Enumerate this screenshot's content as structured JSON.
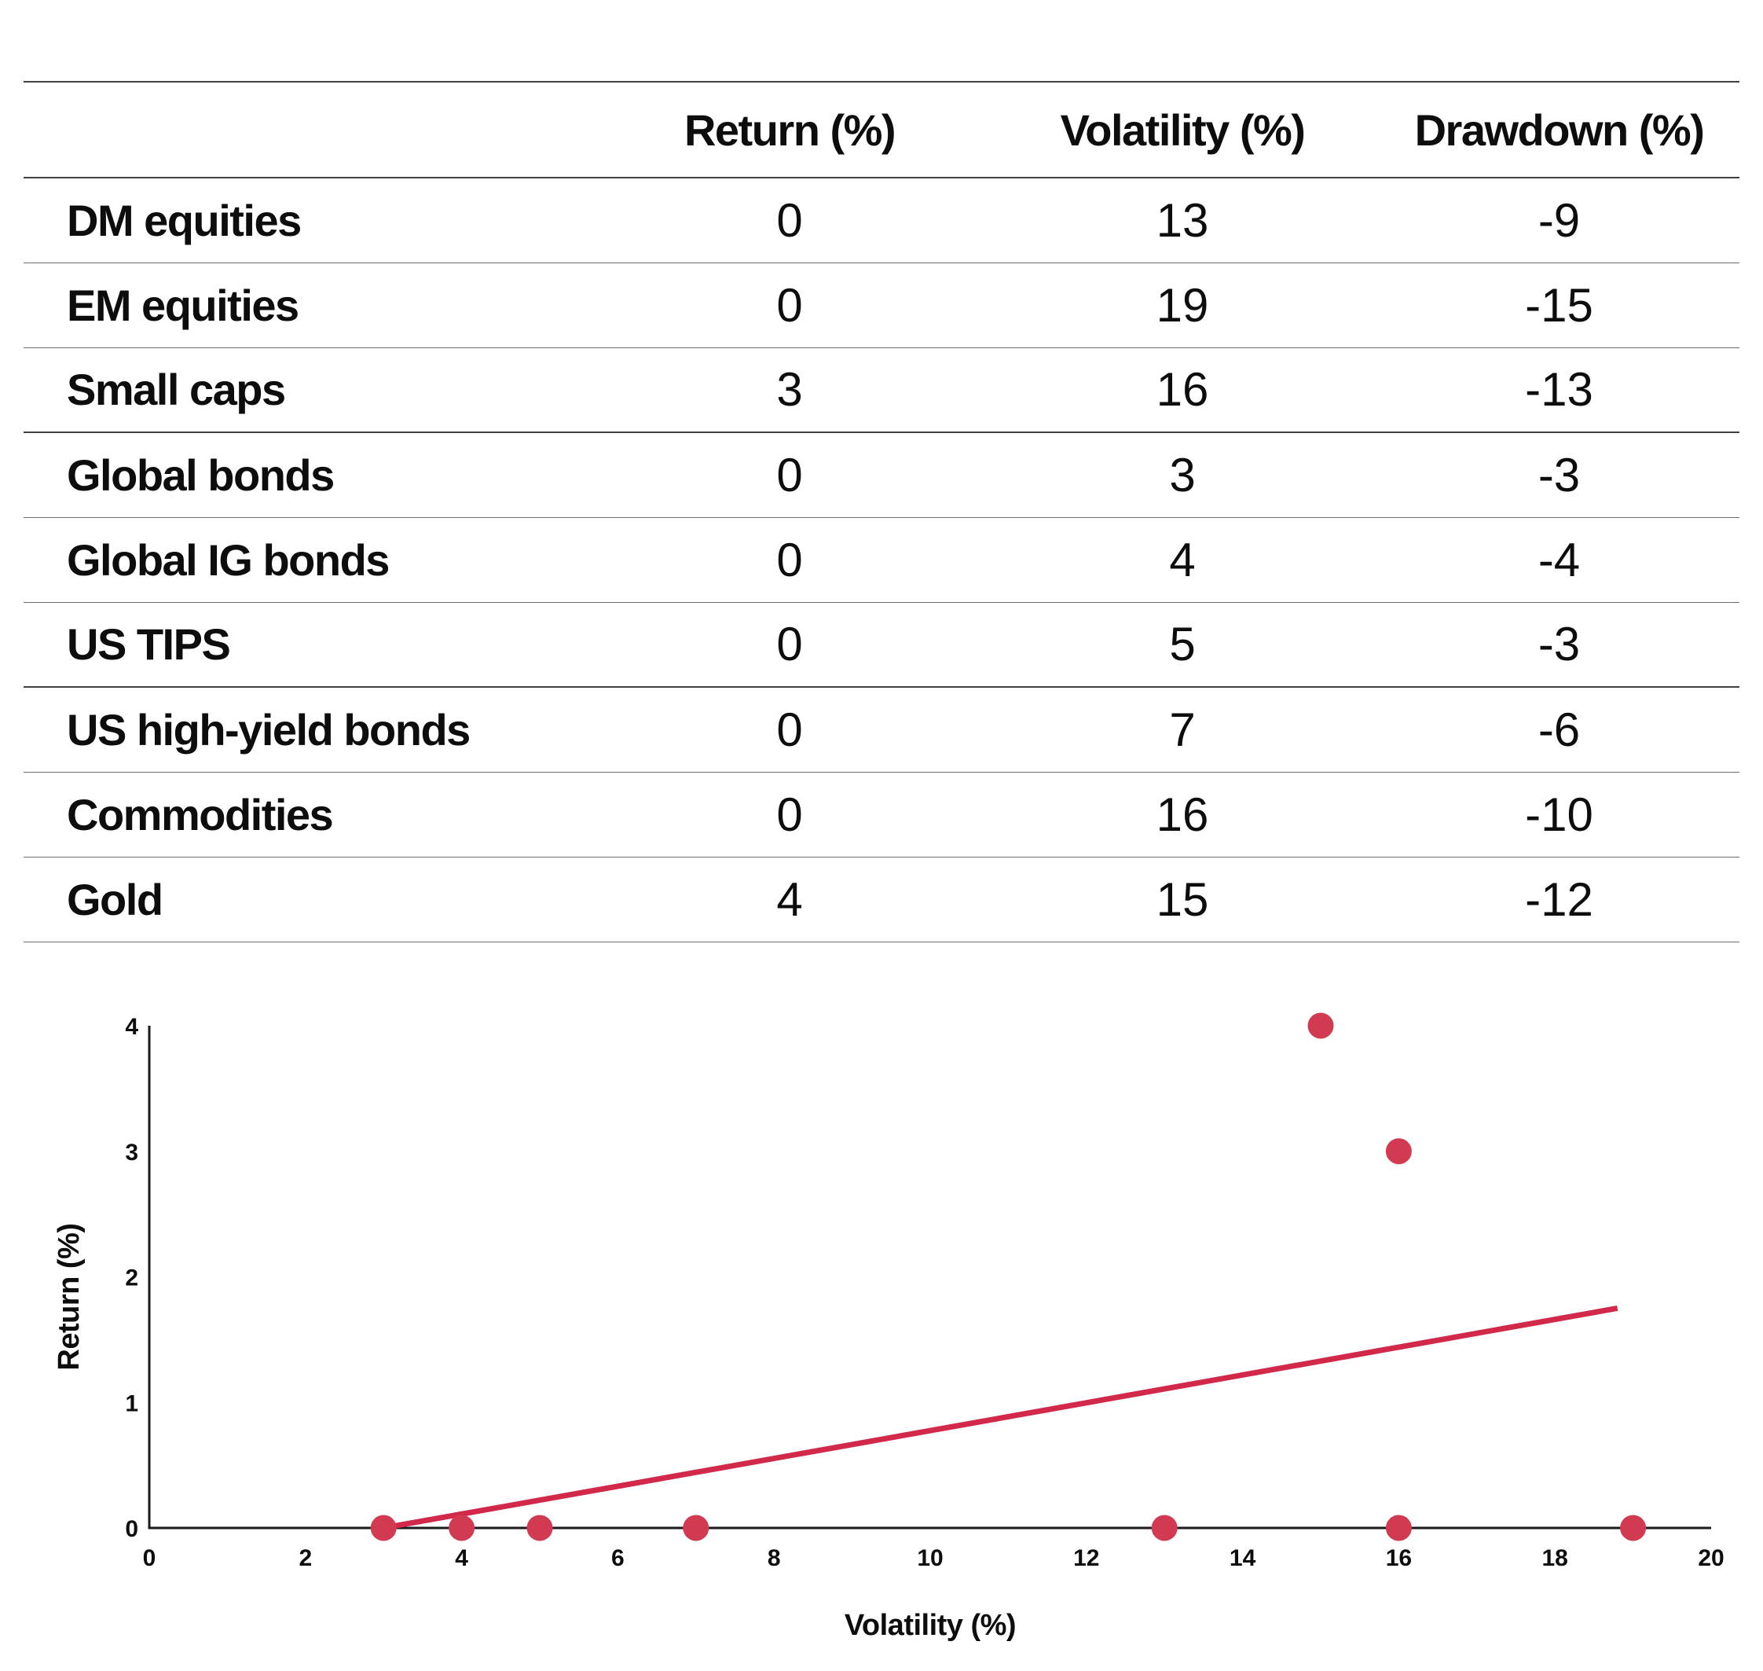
{
  "colors": {
    "marker": "#d23a52",
    "trend_line": "#d2294a",
    "axis": "#1a1a1a",
    "rule_dark": "#414141",
    "rule_light": "#6e6e6e"
  },
  "table": {
    "header": {
      "asset": "",
      "return": "Return (%)",
      "volatility": "Volatility (%)",
      "drawdown": "Drawdown (%)"
    },
    "rows": [
      {
        "label": "DM equities",
        "return": "0",
        "volatility": "13",
        "drawdown": "-9",
        "group_end": false
      },
      {
        "label": "EM equities",
        "return": "0",
        "volatility": "19",
        "drawdown": "-15",
        "group_end": false
      },
      {
        "label": "Small caps",
        "return": "3",
        "volatility": "16",
        "drawdown": "-13",
        "group_end": true
      },
      {
        "label": "Global bonds",
        "return": "0",
        "volatility": "3",
        "drawdown": "-3",
        "group_end": false
      },
      {
        "label": "Global IG bonds",
        "return": "0",
        "volatility": "4",
        "drawdown": "-4",
        "group_end": false
      },
      {
        "label": "US TIPS",
        "return": "0",
        "volatility": "5",
        "drawdown": "-3",
        "group_end": true
      },
      {
        "label": "US high-yield bonds",
        "return": "0",
        "volatility": "7",
        "drawdown": "-6",
        "group_end": false
      },
      {
        "label": "Commodities",
        "return": "0",
        "volatility": "16",
        "drawdown": "-10",
        "group_end": false
      },
      {
        "label": "Gold",
        "return": "4",
        "volatility": "15",
        "drawdown": "-12",
        "group_end": false
      }
    ]
  },
  "chart_data": {
    "type": "scatter",
    "title": "",
    "xlabel": "Volatility (%)",
    "ylabel": "Return (%)",
    "xlim": [
      0,
      20
    ],
    "ylim": [
      0,
      4
    ],
    "xticks": [
      0,
      2,
      4,
      6,
      8,
      10,
      12,
      14,
      16,
      18,
      20
    ],
    "yticks": [
      0,
      1,
      2,
      3,
      4
    ],
    "grid": false,
    "legend": false,
    "points": [
      {
        "label": "DM equities",
        "x": 13,
        "y": 0
      },
      {
        "label": "EM equities",
        "x": 19,
        "y": 0
      },
      {
        "label": "Small caps",
        "x": 16,
        "y": 3
      },
      {
        "label": "Global bonds",
        "x": 3,
        "y": 0
      },
      {
        "label": "Global IG bonds",
        "x": 4,
        "y": 0
      },
      {
        "label": "US TIPS",
        "x": 5,
        "y": 0
      },
      {
        "label": "US high-yield bonds",
        "x": 7,
        "y": 0
      },
      {
        "label": "Commodities",
        "x": 16,
        "y": 0
      },
      {
        "label": "Gold",
        "x": 15,
        "y": 4
      }
    ],
    "trendline": {
      "x1": 3,
      "y1": 0,
      "x2": 18.8,
      "y2": 1.75
    },
    "marker_color": "#d23a52",
    "line_color": "#d2294a"
  }
}
